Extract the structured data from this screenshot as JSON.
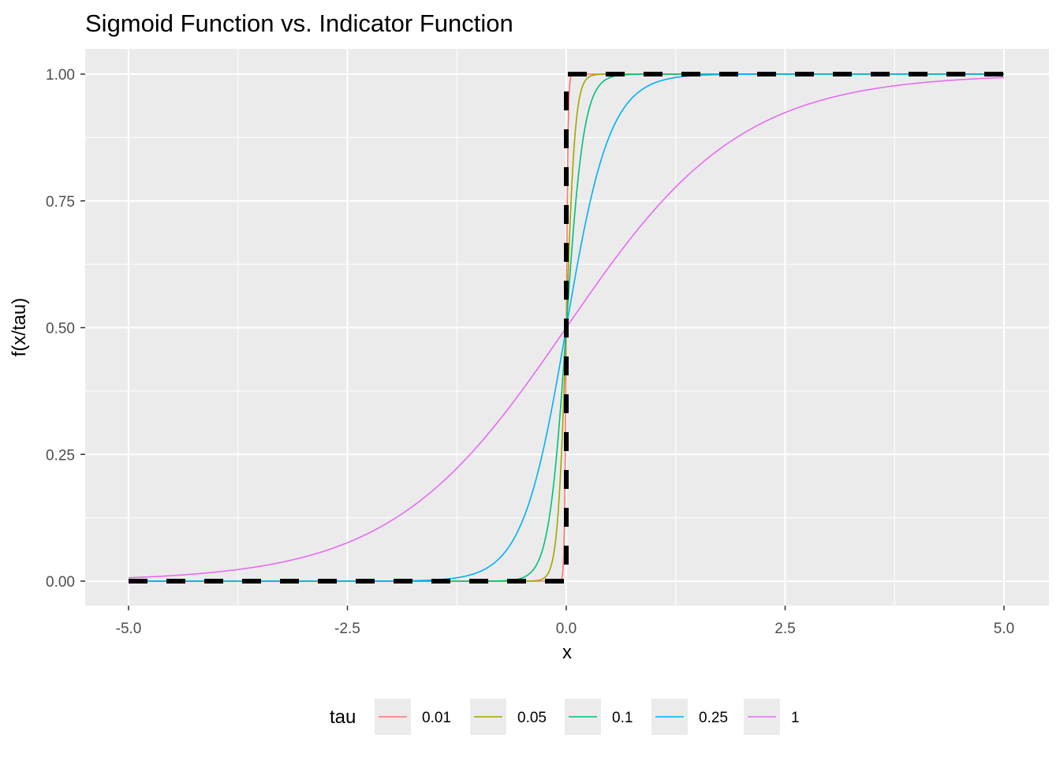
{
  "chart_data": {
    "type": "line",
    "title": "Sigmoid Function vs. Indicator Function",
    "xlabel": "x",
    "ylabel": "f(x/tau)",
    "xlim": [
      -5,
      5
    ],
    "ylim": [
      0,
      1
    ],
    "x_ticks": [
      -5,
      -2.5,
      0,
      2.5,
      5
    ],
    "x_tick_labels": [
      "-5.0",
      "-2.5",
      "0.0",
      "2.5",
      "5.0"
    ],
    "y_ticks": [
      0,
      0.25,
      0.5,
      0.75,
      1
    ],
    "y_tick_labels": [
      "0.00",
      "0.25",
      "0.50",
      "0.75",
      "1.00"
    ],
    "grid": true,
    "legend": {
      "title": "tau",
      "position": "bottom"
    },
    "series": [
      {
        "name": "0.01",
        "tau": 0.01,
        "color": "#F8766D",
        "function": "sigmoid"
      },
      {
        "name": "0.05",
        "tau": 0.05,
        "color": "#A3A500",
        "function": "sigmoid"
      },
      {
        "name": "0.1",
        "tau": 0.1,
        "color": "#00BF7D",
        "function": "sigmoid"
      },
      {
        "name": "0.25",
        "tau": 0.25,
        "color": "#00B0F6",
        "function": "sigmoid"
      },
      {
        "name": "1",
        "tau": 1,
        "color": "#E76BF3",
        "function": "sigmoid"
      }
    ],
    "indicator": {
      "x": [
        -5,
        0,
        0,
        5
      ],
      "y": [
        0,
        0,
        1,
        1
      ],
      "color": "#000000",
      "style": "dashed"
    }
  }
}
